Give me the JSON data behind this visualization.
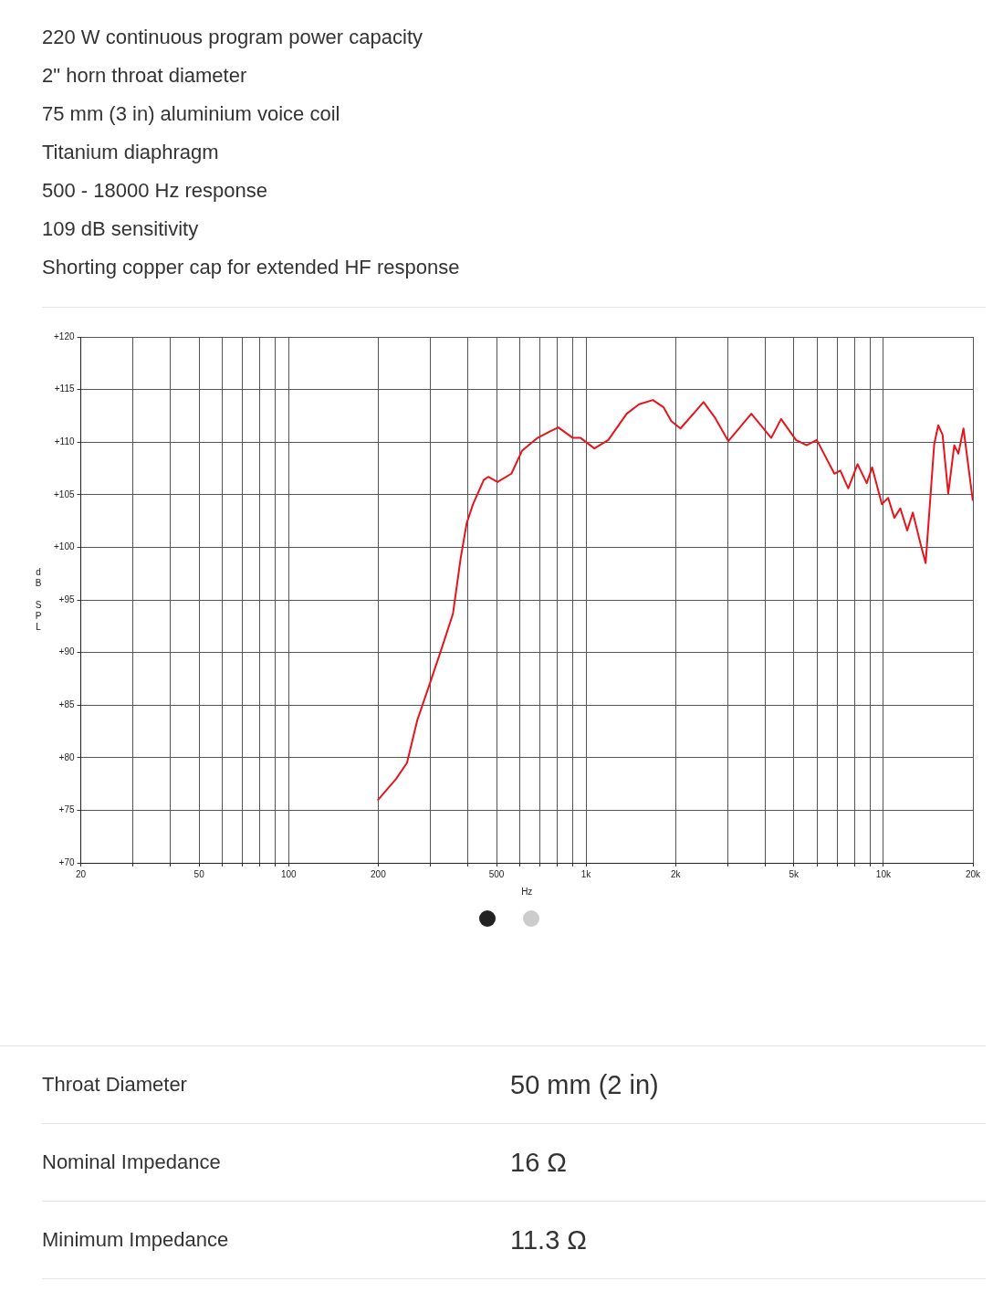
{
  "chart_data": {
    "type": "line",
    "xlabel": "Hz",
    "ylabel": "dB SPL",
    "annotations": [
      "220 W continuous program power capacity",
      "2\" horn throat diameter",
      "75 mm (3 in) aluminium voice coil",
      "Titanium diaphragm",
      "500 - 18000 Hz response",
      "109 dB sensitivity",
      "Shorting copper cap for extended HF response",
      "Throat Diameter",
      "50 mm (2 in)",
      "Nominal Impedance",
      "16 Ω",
      "Minimum Impedance",
      "11.3 Ω"
    ],
    "log": "x",
    "grid": true,
    "legend": false,
    "marker": "none",
    "line_style": "solid",
    "xlim": [
      20,
      20000
    ],
    "xticks": [
      20,
      {
        "value": 30,
        "label": null
      },
      {
        "value": 40,
        "label": null
      },
      50,
      {
        "value": 60,
        "label": null
      },
      {
        "value": 70,
        "label": null
      },
      {
        "value": 80,
        "label": null
      },
      {
        "value": 90,
        "label": null
      },
      100,
      200,
      {
        "value": 300,
        "label": null
      },
      {
        "value": 400,
        "label": null
      },
      500,
      {
        "value": 600,
        "label": null
      },
      {
        "value": 700,
        "label": null
      },
      {
        "value": 800,
        "label": null
      },
      {
        "value": 900,
        "label": null
      },
      {
        "value": 1000,
        "label": "1k"
      },
      {
        "value": 2000,
        "label": "2k"
      },
      {
        "value": 3000,
        "label": null
      },
      {
        "value": 4000,
        "label": null
      },
      {
        "value": 5000,
        "label": "5k"
      },
      {
        "value": 6000,
        "label": null
      },
      {
        "value": 7000,
        "label": null
      },
      {
        "value": 8000,
        "label": null
      },
      {
        "value": 9000,
        "label": null
      },
      {
        "value": 10000,
        "label": "10k"
      },
      {
        "value": 20000,
        "label": "20k"
      }
    ],
    "ylim": [
      70,
      120
    ],
    "yticks": [
      {
        "value": 70,
        "label": "+70"
      },
      {
        "value": 75,
        "label": "+75"
      },
      {
        "value": 80,
        "label": "+80"
      },
      {
        "value": 85,
        "label": "+85"
      },
      {
        "value": 90,
        "label": "+90"
      },
      {
        "value": 95,
        "label": "+95"
      },
      {
        "value": 100,
        "label": "+100"
      },
      {
        "value": 105,
        "label": "+105"
      },
      {
        "value": 110,
        "label": "+110"
      },
      {
        "value": 115,
        "label": "+115"
      },
      {
        "value": 120,
        "label": "+120"
      }
    ],
    "series": [
      {
        "color": "#e8141b",
        "x": [
          200,
          230,
          250,
          271,
          298,
          328,
          357,
          379,
          397,
          417,
          453,
          469,
          504,
          561,
          610,
          687,
          755,
          807,
          903,
          959,
          1067,
          1188,
          1370,
          1508,
          1678,
          1824,
          1936,
          2078,
          2484,
          2703,
          3009,
          3597,
          4196,
          4528,
          5081,
          5520,
          5970,
          6841,
          7165,
          7618,
          8187,
          8790,
          9163,
          9885,
          10375,
          10886,
          11400,
          12025,
          12560,
          13310,
          13870,
          14820,
          15290,
          15810,
          16520,
          17310,
          17870,
          18590,
          19970
        ],
        "values": [
          76,
          78,
          79.5,
          83.6,
          87,
          90.5,
          93.7,
          99,
          102.3,
          104.1,
          106.4,
          106.7,
          106.2,
          107,
          109.2,
          110.4,
          111,
          111.4,
          110.4,
          110.4,
          109.4,
          110.2,
          112.7,
          113.6,
          114,
          113.3,
          112,
          111.3,
          113.8,
          112.4,
          110.1,
          112.7,
          110.4,
          112.2,
          110.2,
          109.7,
          110.2,
          107,
          107.3,
          105.6,
          107.9,
          106.1,
          107.6,
          104.1,
          104.7,
          102.8,
          103.7,
          101.6,
          103.3,
          100.4,
          98.5,
          109.8,
          111.6,
          110.7,
          105.1,
          109.7,
          108.9,
          111.3,
          104.5
        ]
      }
    ]
  }
}
